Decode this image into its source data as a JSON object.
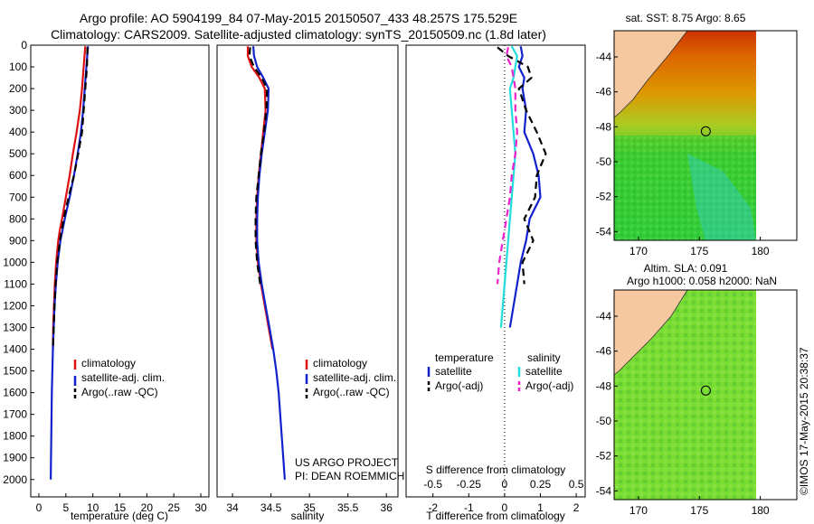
{
  "title_line1": "Argo profile: AO 5904199_84 07-May-2015 20150507_433 48.257S 175.529E",
  "title_line2": "Climatology: CARS2009. Satellite-adjusted climatology: synTS_20150509.nc (1.8d later)",
  "chart_data": [
    {
      "id": "temperature",
      "type": "line",
      "xlabel": "temperature (deg C)",
      "xlim": [
        -1.5,
        31.5
      ],
      "ylim": [
        0,
        2080
      ],
      "y_inverted": true,
      "xticks": [
        0,
        5,
        10,
        15,
        20,
        25,
        30
      ],
      "yticks": [
        0,
        100,
        200,
        300,
        400,
        500,
        600,
        700,
        800,
        900,
        1000,
        1100,
        1200,
        1300,
        1400,
        1500,
        1600,
        1700,
        1800,
        1900,
        2000
      ],
      "legend": [
        "climatology",
        "satellite-adj. clim.",
        "Argo(..raw -QC)"
      ],
      "series": [
        {
          "name": "climatology",
          "color": "#dd1111",
          "dash": "solid",
          "depth": [
            5,
            100,
            200,
            300,
            400,
            500,
            600,
            700,
            800,
            850,
            900,
            1000,
            1100,
            1200,
            1300,
            1400
          ],
          "values": [
            8.6,
            8.3,
            8.0,
            7.6,
            7.0,
            6.3,
            5.7,
            5.0,
            4.3,
            3.9,
            3.6,
            3.2,
            2.95,
            2.8,
            2.65,
            2.6
          ]
        },
        {
          "name": "satellite-adj. clim.",
          "color": "#1122cc",
          "dash": "solid",
          "depth": [
            5,
            100,
            200,
            300,
            400,
            500,
            600,
            700,
            800,
            900,
            1000,
            1100,
            1200,
            1300,
            1400,
            1500,
            1600,
            1700,
            1800,
            1900,
            2000
          ],
          "values": [
            9.1,
            8.8,
            8.5,
            8.2,
            7.8,
            7.2,
            6.5,
            5.7,
            4.8,
            4.0,
            3.5,
            3.15,
            2.9,
            2.75,
            2.6,
            2.5,
            2.4,
            2.35,
            2.3,
            2.25,
            2.2
          ]
        },
        {
          "name": "Argo(..raw -QC)",
          "color": "#000000",
          "dash": "8,5",
          "depth": [
            10,
            100,
            200,
            300,
            400,
            500,
            600,
            700,
            800,
            900,
            1000,
            1100,
            1200,
            1300,
            1400
          ],
          "values": [
            9.0,
            8.9,
            8.6,
            8.3,
            8.0,
            7.3,
            6.5,
            5.5,
            4.6,
            3.9,
            3.4,
            3.1,
            2.9,
            2.75,
            2.6
          ]
        }
      ]
    },
    {
      "id": "salinity",
      "type": "line",
      "xlabel": "salinity",
      "xlim": [
        33.8,
        36.15
      ],
      "ylim": [
        0,
        2080
      ],
      "y_inverted": true,
      "xticks": [
        34,
        34.5,
        35,
        35.5,
        36
      ],
      "legend": [
        "climatology",
        "satellite-adj. clim.",
        "Argo(..raw -QC)"
      ],
      "annotation": [
        "US ARGO PROJECT",
        "PI: DEAN ROEMMICH"
      ],
      "series": [
        {
          "name": "climatology",
          "color": "#dd1111",
          "dash": "solid",
          "depth": [
            5,
            50,
            100,
            150,
            200,
            300,
            400,
            500,
            600,
            700,
            800,
            900,
            1000,
            1100,
            1200,
            1300,
            1400
          ],
          "values": [
            34.2,
            34.2,
            34.25,
            34.35,
            34.42,
            34.43,
            34.4,
            34.37,
            34.34,
            34.32,
            34.31,
            34.31,
            34.33,
            34.37,
            34.42,
            34.47,
            34.52
          ]
        },
        {
          "name": "satellite-adj. clim.",
          "color": "#1122cc",
          "dash": "solid",
          "depth": [
            5,
            50,
            100,
            150,
            200,
            300,
            400,
            500,
            600,
            700,
            800,
            900,
            1000,
            1100,
            1200,
            1300,
            1400,
            1500,
            1600,
            1700,
            1800,
            1900,
            2000
          ],
          "values": [
            34.27,
            34.28,
            34.32,
            34.4,
            34.47,
            34.46,
            34.42,
            34.38,
            34.35,
            34.33,
            34.32,
            34.32,
            34.34,
            34.38,
            34.43,
            34.48,
            34.53,
            34.57,
            34.6,
            34.62,
            34.64,
            34.66,
            34.68
          ]
        },
        {
          "name": "Argo(..raw -QC)",
          "color": "#000000",
          "dash": "8,5",
          "depth": [
            10,
            50,
            100,
            150,
            200,
            300,
            400,
            500,
            600,
            700,
            800,
            900,
            1000,
            1100
          ],
          "values": [
            34.23,
            34.22,
            34.28,
            34.38,
            34.45,
            34.44,
            34.41,
            34.37,
            34.34,
            34.31,
            34.3,
            34.3,
            34.32,
            34.36
          ]
        }
      ]
    },
    {
      "id": "difference",
      "type": "line",
      "xlabel": "T difference from climatology",
      "xlabel_top": "S difference from climatology",
      "xlim": [
        -2.75,
        2.25
      ],
      "ylim": [
        0,
        2080
      ],
      "y_inverted": true,
      "xticks": [
        -2,
        -1,
        0,
        1,
        2
      ],
      "xticks_top": [
        "-0.5",
        "-0.25",
        "0",
        "0.25",
        "0.5"
      ],
      "xticks_top_pos": [
        -2,
        -1,
        0,
        1,
        2
      ],
      "legend_headers": [
        "temperature",
        "salinity"
      ],
      "legend_left": [
        "satellite",
        "Argo(-adj)"
      ],
      "legend_right": [
        "satellite",
        "Argo(-adj)"
      ],
      "series": [
        {
          "name": "T satellite",
          "color": "#1122cc",
          "dash": "solid",
          "depth": [
            5,
            50,
            100,
            150,
            200,
            300,
            400,
            500,
            600,
            700,
            800,
            900,
            1000,
            1100,
            1200,
            1300
          ],
          "values": [
            0.45,
            0.5,
            0.4,
            0.55,
            0.5,
            0.6,
            0.55,
            0.8,
            0.95,
            1.0,
            0.7,
            0.6,
            0.45,
            0.35,
            0.25,
            0.15
          ]
        },
        {
          "name": "T Argo(-adj)",
          "color": "#000000",
          "dash": "8,5",
          "depth": [
            10,
            50,
            100,
            150,
            200,
            300,
            400,
            500,
            600,
            700,
            800,
            900,
            1000,
            1100
          ],
          "values": [
            -0.2,
            0.1,
            0.65,
            0.75,
            0.4,
            0.6,
            0.9,
            1.15,
            0.9,
            0.85,
            0.55,
            0.8,
            0.5,
            0.55
          ]
        },
        {
          "name": "S satellite",
          "color": "#22dddd",
          "dash": "solid",
          "depth": [
            5,
            50,
            100,
            150,
            200,
            300,
            400,
            500,
            600,
            700,
            800,
            900,
            1000,
            1100,
            1200,
            1300
          ],
          "values": [
            0.2,
            0.35,
            0.3,
            0.25,
            0.15,
            0.2,
            0.25,
            0.3,
            0.25,
            0.2,
            0.15,
            0.1,
            0.05,
            0.0,
            -0.05,
            -0.1
          ]
        },
        {
          "name": "S Argo(-adj)",
          "color": "#ee22cc",
          "dash": "8,5",
          "depth": [
            10,
            50,
            100,
            200,
            300,
            400,
            500,
            600,
            700,
            800,
            900,
            1000,
            1100
          ],
          "values": [
            0.1,
            0.05,
            0.2,
            0.3,
            0.3,
            0.35,
            0.3,
            0.2,
            0.15,
            0.05,
            -0.05,
            -0.15,
            -0.2
          ]
        }
      ]
    },
    {
      "id": "map-sst",
      "type": "heatmap",
      "title": "sat. SST: 8.75 Argo: 8.65",
      "xticks": [
        170,
        175,
        180
      ],
      "yticks": [
        -44,
        -46,
        -48,
        -50,
        -52,
        -54
      ],
      "xlim": [
        168,
        183
      ],
      "ylim": [
        -54.5,
        -42.5
      ],
      "argo_position": {
        "lon": 175.529,
        "lat": -48.257
      }
    },
    {
      "id": "map-sla",
      "type": "heatmap",
      "title_line1": "Altim. SLA: 0.091",
      "title_line2": "Argo h1000: 0.058 h2000: NaN",
      "xticks": [
        170,
        175,
        180
      ],
      "yticks": [
        -44,
        -46,
        -48,
        -50,
        -52,
        -54
      ],
      "xlim": [
        168,
        183
      ],
      "ylim": [
        -54.5,
        -42.5
      ],
      "argo_position": {
        "lon": 175.529,
        "lat": -48.257
      }
    }
  ],
  "footer_credit": "©IMOS 17-May-2015 20:38:37"
}
